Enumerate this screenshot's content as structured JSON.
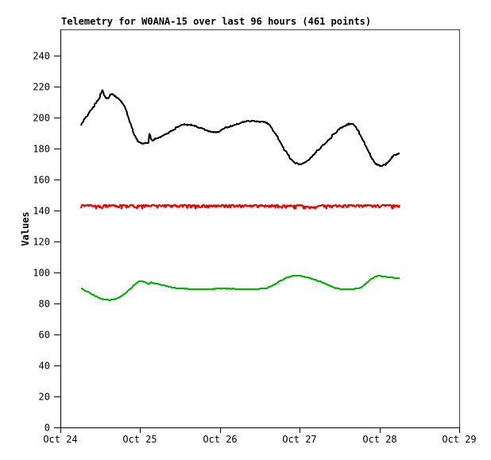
{
  "chart_data": {
    "type": "line",
    "title": "Telemetry for W0ANA-15 over last 96 hours (461 points)",
    "ylabel": "Values",
    "points_count": 461,
    "ylim": [
      0,
      257
    ],
    "y_ticks": [
      0,
      20,
      40,
      60,
      80,
      100,
      120,
      140,
      160,
      180,
      200,
      220,
      240
    ],
    "x_tick_labels": [
      "Oct 24",
      "Oct 25",
      "Oct 26",
      "Oct 27",
      "Oct 28",
      "Oct 29"
    ],
    "x_unit": "days since Oct 24 00:00",
    "grid": false,
    "legend": "none",
    "series": [
      {
        "name": "series-black",
        "color": "#000000",
        "jitter": 0.45,
        "points": [
          [
            0.259,
            195.5
          ],
          [
            0.299,
            198.5
          ],
          [
            0.339,
            201.5
          ],
          [
            0.378,
            204.5
          ],
          [
            0.418,
            207.5
          ],
          [
            0.458,
            210.5
          ],
          [
            0.488,
            213.0
          ],
          [
            0.518,
            216.0
          ],
          [
            0.528,
            217.5
          ],
          [
            0.548,
            214.5
          ],
          [
            0.568,
            212.8
          ],
          [
            0.598,
            212.5
          ],
          [
            0.627,
            215.3
          ],
          [
            0.657,
            215.0
          ],
          [
            0.697,
            213.5
          ],
          [
            0.737,
            211.8
          ],
          [
            0.777,
            209.5
          ],
          [
            0.797,
            208.0
          ],
          [
            0.837,
            203.0
          ],
          [
            0.857,
            199.5
          ],
          [
            0.886,
            195.0
          ],
          [
            0.916,
            190.5
          ],
          [
            0.946,
            187.0
          ],
          [
            0.966,
            185.0
          ],
          [
            0.996,
            183.8
          ],
          [
            1.026,
            183.4
          ],
          [
            1.066,
            183.4
          ],
          [
            1.096,
            183.8
          ],
          [
            1.112,
            184.8
          ],
          [
            1.122,
            192.0
          ],
          [
            1.132,
            186.5
          ],
          [
            1.145,
            185.3
          ],
          [
            1.175,
            185.8
          ],
          [
            1.215,
            186.8
          ],
          [
            1.265,
            188.0
          ],
          [
            1.315,
            189.2
          ],
          [
            1.364,
            190.5
          ],
          [
            1.404,
            191.8
          ],
          [
            1.444,
            193.2
          ],
          [
            1.484,
            194.3
          ],
          [
            1.524,
            195.3
          ],
          [
            1.564,
            195.6
          ],
          [
            1.604,
            195.6
          ],
          [
            1.643,
            195.4
          ],
          [
            1.683,
            194.9
          ],
          [
            1.723,
            193.9
          ],
          [
            1.763,
            193.3
          ],
          [
            1.803,
            192.4
          ],
          [
            1.843,
            191.2
          ],
          [
            1.883,
            190.7
          ],
          [
            1.922,
            190.4
          ],
          [
            1.962,
            190.7
          ],
          [
            2.002,
            191.1
          ],
          [
            2.032,
            192.3
          ],
          [
            2.062,
            193.5
          ],
          [
            2.102,
            193.9
          ],
          [
            2.141,
            194.4
          ],
          [
            2.181,
            195.3
          ],
          [
            2.221,
            196.0
          ],
          [
            2.261,
            196.7
          ],
          [
            2.301,
            197.2
          ],
          [
            2.341,
            197.6
          ],
          [
            2.381,
            197.9
          ],
          [
            2.42,
            198.1
          ],
          [
            2.46,
            197.7
          ],
          [
            2.5,
            197.5
          ],
          [
            2.54,
            197.6
          ],
          [
            2.58,
            196.8
          ],
          [
            2.62,
            195.4
          ],
          [
            2.659,
            192.3
          ],
          [
            2.699,
            189.3
          ],
          [
            2.729,
            186.5
          ],
          [
            2.769,
            183.0
          ],
          [
            2.809,
            179.5
          ],
          [
            2.849,
            176.3
          ],
          [
            2.889,
            173.3
          ],
          [
            2.928,
            171.5
          ],
          [
            2.968,
            170.2
          ],
          [
            2.998,
            169.9
          ],
          [
            3.038,
            170.4
          ],
          [
            3.078,
            171.8
          ],
          [
            3.118,
            173.3
          ],
          [
            3.167,
            175.6
          ],
          [
            3.217,
            178.4
          ],
          [
            3.267,
            180.9
          ],
          [
            3.317,
            183.3
          ],
          [
            3.367,
            185.9
          ],
          [
            3.416,
            188.7
          ],
          [
            3.466,
            191.3
          ],
          [
            3.516,
            193.4
          ],
          [
            3.566,
            194.9
          ],
          [
            3.616,
            195.9
          ],
          [
            3.645,
            196.3
          ],
          [
            3.675,
            195.6
          ],
          [
            3.715,
            192.9
          ],
          [
            3.755,
            189.4
          ],
          [
            3.795,
            185.4
          ],
          [
            3.835,
            181.1
          ],
          [
            3.874,
            176.9
          ],
          [
            3.914,
            172.9
          ],
          [
            3.954,
            170.3
          ],
          [
            3.994,
            169.2
          ],
          [
            4.034,
            169.0
          ],
          [
            4.074,
            169.7
          ],
          [
            4.104,
            171.1
          ],
          [
            4.133,
            173.0
          ],
          [
            4.173,
            175.2
          ],
          [
            4.213,
            176.5
          ],
          [
            4.253,
            177.0
          ]
        ]
      },
      {
        "name": "series-red",
        "color": "#ee0000",
        "jitter": 0.15,
        "dip_noise": true,
        "points": [
          [
            0.259,
            143.5
          ],
          [
            3.028,
            143.5
          ],
          [
            3.078,
            142.5
          ],
          [
            3.157,
            142.7
          ],
          [
            3.217,
            143.4
          ],
          [
            4.253,
            143.6
          ]
        ]
      },
      {
        "name": "series-green",
        "color": "#00b400",
        "jitter": 0.12,
        "points": [
          [
            0.259,
            89.8
          ],
          [
            0.319,
            88.3
          ],
          [
            0.388,
            86.3
          ],
          [
            0.458,
            84.3
          ],
          [
            0.518,
            82.9
          ],
          [
            0.588,
            82.3
          ],
          [
            0.657,
            82.5
          ],
          [
            0.717,
            83.3
          ],
          [
            0.787,
            85.5
          ],
          [
            0.857,
            88.5
          ],
          [
            0.916,
            91.5
          ],
          [
            0.966,
            93.8
          ],
          [
            1.016,
            94.4
          ],
          [
            1.066,
            93.9
          ],
          [
            1.106,
            92.3
          ],
          [
            1.135,
            93.6
          ],
          [
            1.195,
            92.9
          ],
          [
            1.265,
            92.1
          ],
          [
            1.354,
            91.0
          ],
          [
            1.444,
            90.1
          ],
          [
            1.534,
            89.6
          ],
          [
            1.683,
            89.3
          ],
          [
            1.833,
            89.3
          ],
          [
            1.982,
            89.6
          ],
          [
            2.131,
            89.6
          ],
          [
            2.281,
            89.3
          ],
          [
            2.43,
            89.3
          ],
          [
            2.53,
            89.6
          ],
          [
            2.59,
            90.1
          ],
          [
            2.659,
            91.6
          ],
          [
            2.729,
            93.6
          ],
          [
            2.789,
            95.6
          ],
          [
            2.849,
            97.0
          ],
          [
            2.908,
            97.8
          ],
          [
            2.978,
            98.0
          ],
          [
            3.048,
            97.5
          ],
          [
            3.127,
            96.6
          ],
          [
            3.207,
            95.1
          ],
          [
            3.287,
            93.6
          ],
          [
            3.367,
            91.6
          ],
          [
            3.446,
            90.0
          ],
          [
            3.526,
            89.4
          ],
          [
            3.606,
            89.3
          ],
          [
            3.685,
            89.4
          ],
          [
            3.745,
            89.9
          ],
          [
            3.795,
            91.3
          ],
          [
            3.845,
            93.6
          ],
          [
            3.894,
            95.8
          ],
          [
            3.944,
            97.3
          ],
          [
            3.994,
            97.9
          ],
          [
            4.044,
            97.6
          ],
          [
            4.104,
            97.0
          ],
          [
            4.163,
            96.7
          ],
          [
            4.253,
            96.5
          ]
        ]
      }
    ]
  }
}
